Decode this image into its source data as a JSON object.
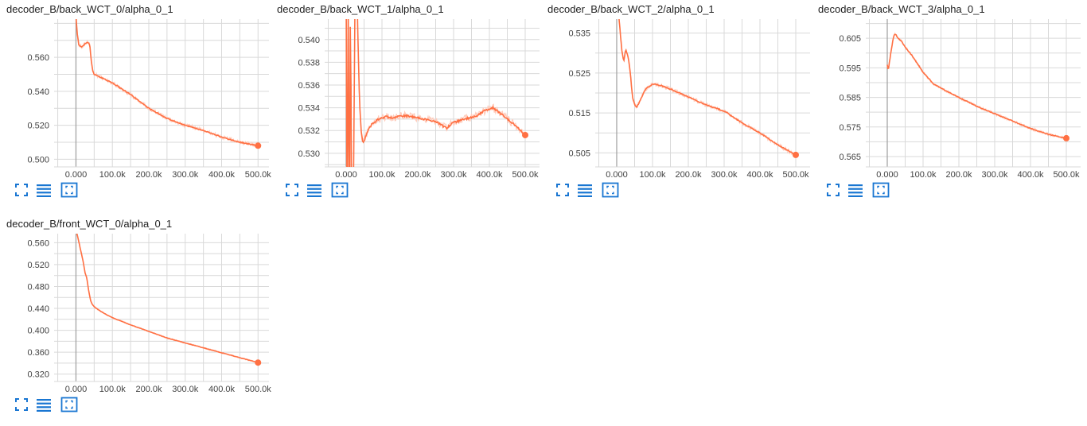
{
  "colors": {
    "series": "#ff7043",
    "raw": "#ffccbc",
    "grid": "#d9d9d9",
    "axis": "#9e9e9e",
    "tool": "#1976d2"
  },
  "tools": {
    "expand": "expand-icon",
    "data_table": "list-icon",
    "fit_domain": "fit-to-data-icon"
  },
  "chart_data": [
    {
      "type": "line",
      "title": "decoder_B/back_WCT_0/alpha_0_1",
      "xlim": [
        -60000,
        530000
      ],
      "ylim": [
        0.4955,
        0.5825
      ],
      "x_ticks": [
        0,
        100000,
        200000,
        300000,
        400000,
        500000
      ],
      "x_tick_labels": [
        "0.000",
        "100.0k",
        "200.0k",
        "300.0k",
        "400.0k",
        "500.0k"
      ],
      "y_ticks": [
        0.5,
        0.52,
        0.54,
        0.56
      ],
      "y_tick_labels": [
        "0.500",
        "0.520",
        "0.540",
        "0.560"
      ],
      "grid": true,
      "series": [
        {
          "x": [
            0,
            3000,
            8000,
            15000,
            25000,
            33000,
            38000,
            42000,
            46000,
            50000,
            60000,
            80000,
            100000,
            150000,
            200000,
            250000,
            300000,
            350000,
            400000,
            450000,
            500000
          ],
          "y": [
            0.585,
            0.575,
            0.567,
            0.566,
            0.568,
            0.569,
            0.567,
            0.558,
            0.552,
            0.55,
            0.549,
            0.547,
            0.545,
            0.538,
            0.53,
            0.524,
            0.52,
            0.517,
            0.513,
            0.51,
            0.508
          ],
          "noise": 0.0012
        }
      ]
    },
    {
      "type": "line",
      "title": "decoder_B/back_WCT_1/alpha_0_1",
      "xlim": [
        -60000,
        540000
      ],
      "ylim": [
        0.5288,
        0.5418
      ],
      "x_ticks": [
        0,
        100000,
        200000,
        300000,
        400000,
        500000
      ],
      "x_tick_labels": [
        "0.000",
        "100.0k",
        "200.0k",
        "300.0k",
        "400.0k",
        "500.0k"
      ],
      "y_ticks": [
        0.53,
        0.532,
        0.534,
        0.536,
        0.538,
        0.54
      ],
      "y_tick_labels": [
        "0.530",
        "0.532",
        "0.534",
        "0.536",
        "0.538",
        "0.540"
      ],
      "grid": true,
      "series": [
        {
          "x": [
            0,
            3000,
            6000,
            9000,
            12000,
            16000,
            20000,
            25000,
            30000,
            33000,
            36000,
            39000,
            42000,
            45000,
            48000,
            52000,
            58000,
            70000,
            90000,
            110000,
            130000,
            160000,
            190000,
            220000,
            250000,
            280000,
            300000,
            330000,
            360000,
            390000,
            410000,
            440000,
            470000,
            500000
          ],
          "y": [
            0.545,
            0.52,
            0.545,
            0.52,
            0.545,
            0.52,
            0.525,
            0.545,
            0.545,
            0.54,
            0.536,
            0.5335,
            0.532,
            0.5312,
            0.531,
            0.5312,
            0.5318,
            0.5325,
            0.533,
            0.5332,
            0.5331,
            0.5333,
            0.5332,
            0.533,
            0.5328,
            0.5322,
            0.5327,
            0.533,
            0.5332,
            0.5338,
            0.534,
            0.5333,
            0.5325,
            0.5316
          ],
          "noise": 0.00035
        }
      ]
    },
    {
      "type": "line",
      "title": "decoder_B/back_WCT_2/alpha_0_1",
      "xlim": [
        -60000,
        540000
      ],
      "ylim": [
        0.5015,
        0.5385
      ],
      "x_ticks": [
        0,
        100000,
        200000,
        300000,
        400000,
        500000
      ],
      "x_tick_labels": [
        "0.000",
        "100.0k",
        "200.0k",
        "300.0k",
        "400.0k",
        "500.0k"
      ],
      "y_ticks": [
        0.505,
        0.515,
        0.525,
        0.535
      ],
      "y_tick_labels": [
        "0.505",
        "0.515",
        "0.525",
        "0.535"
      ],
      "grid": true,
      "series": [
        {
          "x": [
            5000,
            10000,
            15000,
            20000,
            25000,
            32000,
            38000,
            44000,
            50000,
            56000,
            65000,
            80000,
            100000,
            120000,
            150000,
            200000,
            250000,
            300000,
            350000,
            400000,
            450000,
            500000
          ],
          "y": [
            0.54,
            0.535,
            0.53,
            0.528,
            0.531,
            0.529,
            0.525,
            0.519,
            0.517,
            0.5165,
            0.518,
            0.521,
            0.5222,
            0.522,
            0.521,
            0.519,
            0.517,
            0.5155,
            0.5125,
            0.51,
            0.507,
            0.5045
          ],
          "noise": 0.0005
        }
      ]
    },
    {
      "type": "line",
      "title": "decoder_B/back_WCT_3/alpha_0_1",
      "xlim": [
        -60000,
        540000
      ],
      "ylim": [
        0.5615,
        0.6115
      ],
      "x_ticks": [
        0,
        100000,
        200000,
        300000,
        400000,
        500000
      ],
      "x_tick_labels": [
        "0.000",
        "100.0k",
        "200.0k",
        "300.0k",
        "400.0k",
        "500.0k"
      ],
      "y_ticks": [
        0.565,
        0.575,
        0.585,
        0.595,
        0.605
      ],
      "y_tick_labels": [
        "0.565",
        "0.575",
        "0.585",
        "0.595",
        "0.605"
      ],
      "grid": true,
      "series": [
        {
          "x": [
            0,
            3000,
            6000,
            10000,
            15000,
            20000,
            25000,
            30000,
            40000,
            50000,
            70000,
            100000,
            130000,
            160000,
            200000,
            250000,
            300000,
            350000,
            400000,
            450000,
            500000
          ],
          "y": [
            0.596,
            0.594,
            0.597,
            0.6,
            0.604,
            0.6065,
            0.606,
            0.605,
            0.604,
            0.602,
            0.599,
            0.5935,
            0.5895,
            0.5875,
            0.585,
            0.582,
            0.5795,
            0.577,
            0.5745,
            0.5725,
            0.5712
          ],
          "noise": 0.00045
        }
      ]
    },
    {
      "type": "line",
      "title": "decoder_B/front_WCT_0/alpha_0_1",
      "xlim": [
        -60000,
        530000
      ],
      "ylim": [
        0.3065,
        0.5765
      ],
      "x_ticks": [
        0,
        100000,
        200000,
        300000,
        400000,
        500000
      ],
      "x_tick_labels": [
        "0.000",
        "100.0k",
        "200.0k",
        "300.0k",
        "400.0k",
        "500.0k"
      ],
      "y_ticks": [
        0.32,
        0.36,
        0.4,
        0.44,
        0.48,
        0.52,
        0.56
      ],
      "y_tick_labels": [
        "0.320",
        "0.360",
        "0.400",
        "0.440",
        "0.480",
        "0.520",
        "0.560"
      ],
      "grid": true,
      "series": [
        {
          "x": [
            0,
            5000,
            10000,
            15000,
            20000,
            25000,
            30000,
            35000,
            40000,
            45000,
            50000,
            60000,
            80000,
            100000,
            150000,
            200000,
            250000,
            300000,
            350000,
            400000,
            450000,
            500000
          ],
          "y": [
            0.585,
            0.57,
            0.555,
            0.54,
            0.525,
            0.505,
            0.495,
            0.472,
            0.455,
            0.447,
            0.443,
            0.438,
            0.43,
            0.423,
            0.41,
            0.398,
            0.386,
            0.377,
            0.368,
            0.359,
            0.35,
            0.341
          ],
          "noise": 0.0012
        }
      ]
    }
  ]
}
